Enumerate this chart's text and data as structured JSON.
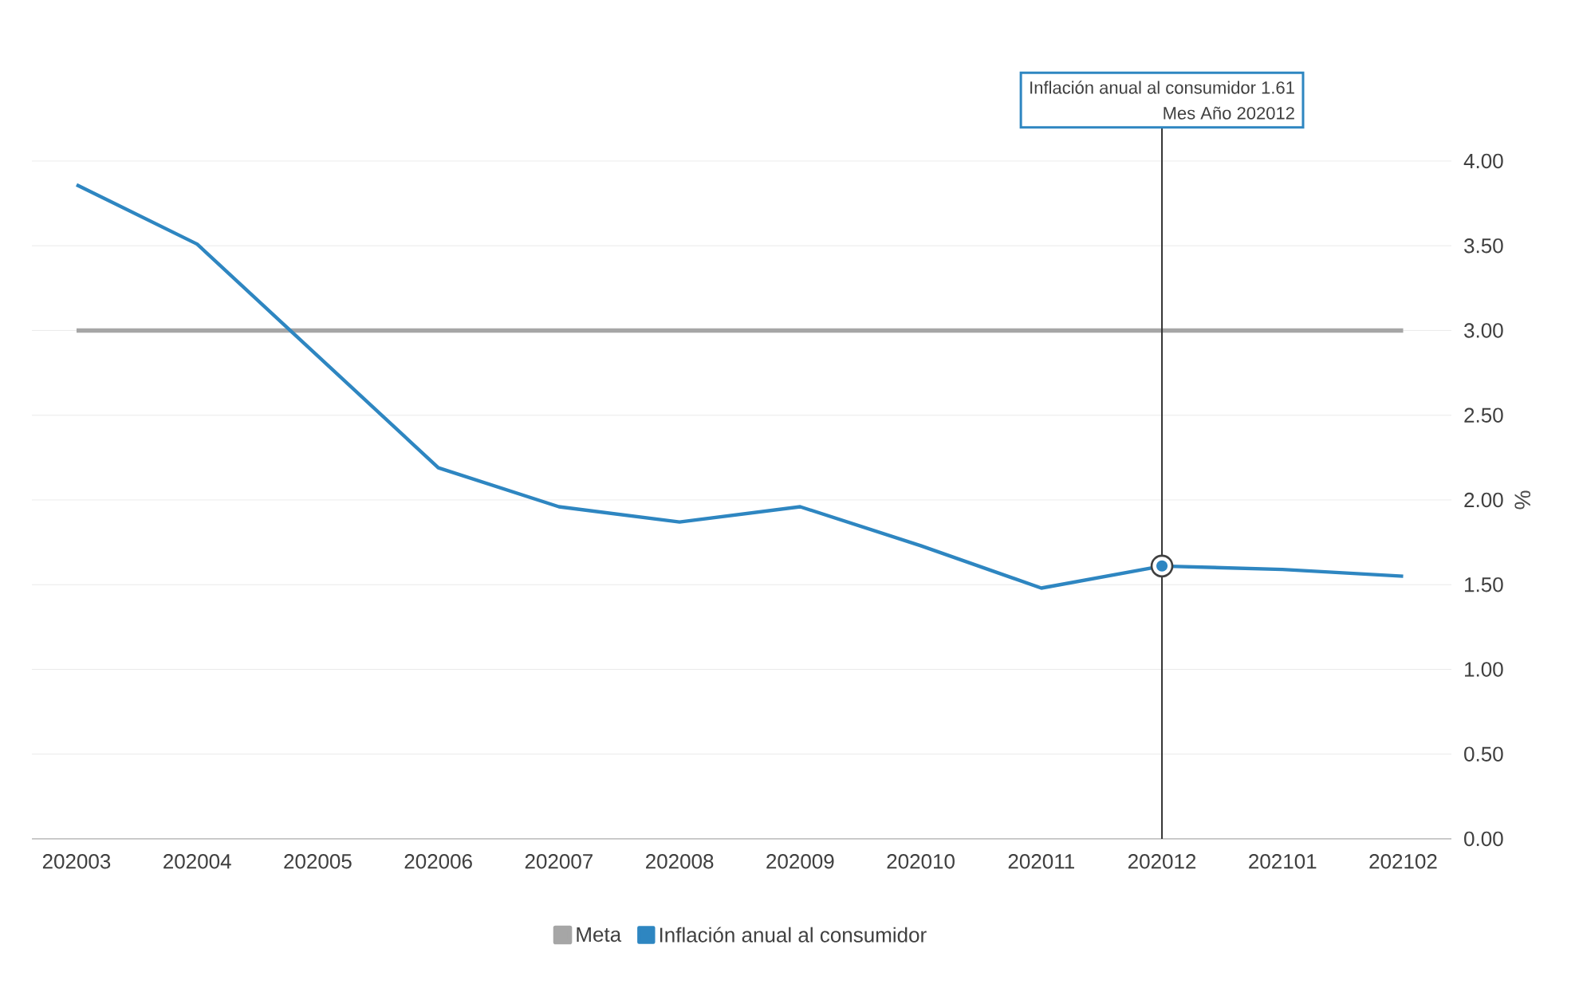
{
  "chart_data": {
    "type": "line",
    "ylabel": "%",
    "categories": [
      "202003",
      "202004",
      "202005",
      "202006",
      "202007",
      "202008",
      "202009",
      "202010",
      "202011",
      "202012",
      "202101",
      "202102"
    ],
    "series": [
      {
        "name": "Meta",
        "color": "#a6a6a6",
        "values": [
          3.0,
          3.0,
          3.0,
          3.0,
          3.0,
          3.0,
          3.0,
          3.0,
          3.0,
          3.0,
          3.0,
          3.0
        ]
      },
      {
        "name": "Inflación anual al consumidor",
        "color": "#2e86c1",
        "values": [
          3.86,
          3.51,
          2.85,
          2.19,
          1.96,
          1.87,
          1.96,
          1.73,
          1.48,
          1.61,
          1.59,
          1.55
        ]
      }
    ],
    "ylim": [
      0,
      4
    ],
    "yticks": [
      {
        "value": 0,
        "label": "0.00"
      },
      {
        "value": 0.5,
        "label": "0.50"
      },
      {
        "value": 1,
        "label": "1.00"
      },
      {
        "value": 1.5,
        "label": "1.50"
      },
      {
        "value": 2,
        "label": "2.00"
      },
      {
        "value": 2.5,
        "label": "2.50"
      },
      {
        "value": 3,
        "label": "3.00"
      },
      {
        "value": 3.5,
        "label": "3.50"
      },
      {
        "value": 4,
        "label": "4.00"
      }
    ],
    "grid": "y",
    "legend": "bottom",
    "marker": "none",
    "line_style": "solid",
    "ref_lines": [
      {
        "axis": "x",
        "value": "202012",
        "color": "#333333"
      }
    ],
    "annotations": [
      "Inflación anual al consumidor 1.61",
      "Mes Año 202012"
    ]
  }
}
